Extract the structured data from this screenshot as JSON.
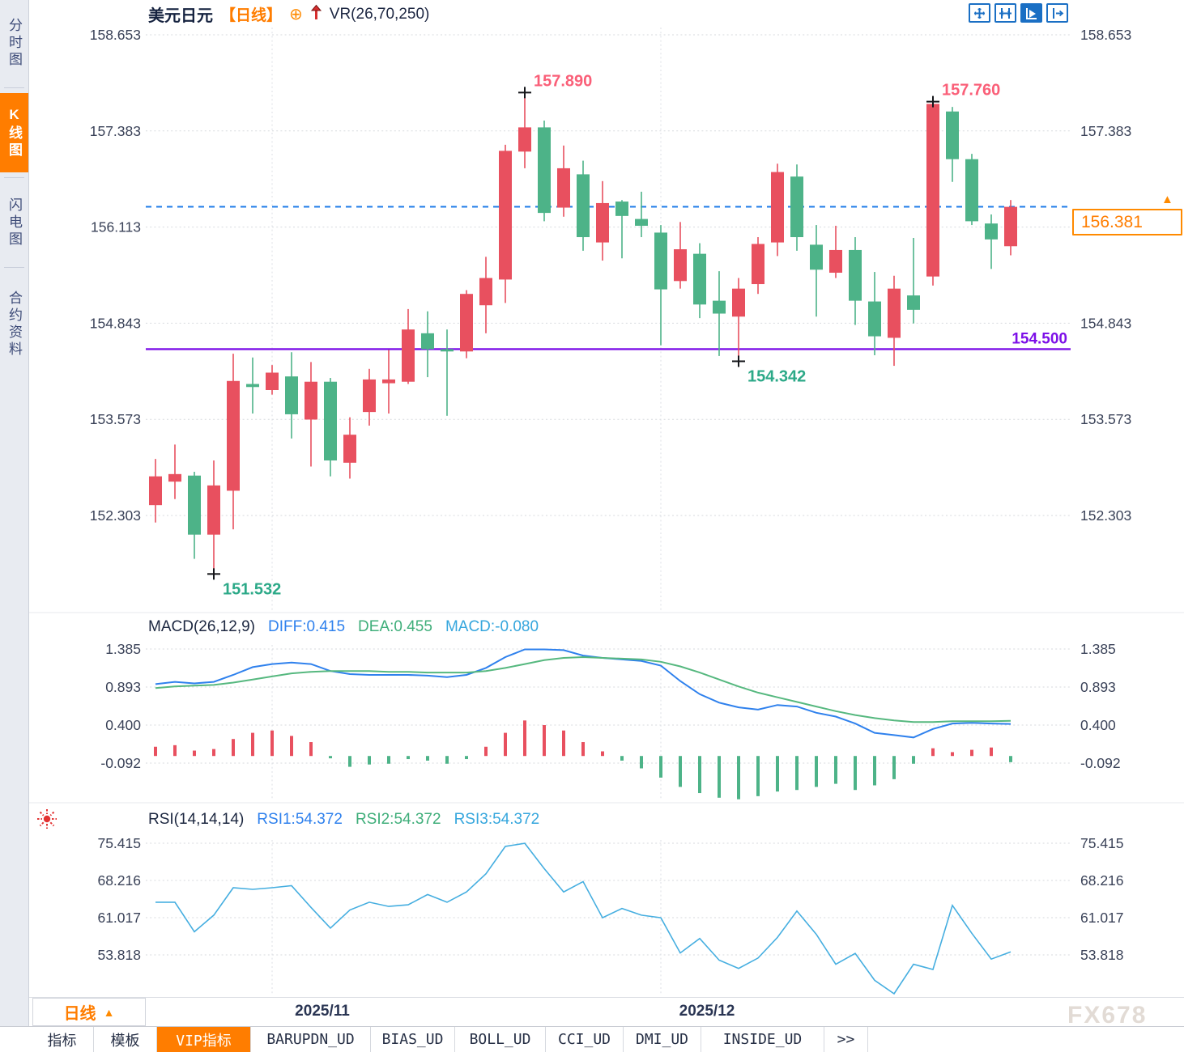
{
  "header": {
    "pair": "美元日元",
    "period": "【日线】",
    "indicator": "VR(26,70,250)"
  },
  "icons": {
    "plus_circle": "⊕",
    "triangle_up": "▲"
  },
  "sidebar": {
    "items": [
      {
        "label": "分时图",
        "active": false
      },
      {
        "label": "K线图",
        "active": true
      },
      {
        "label": "闪电图",
        "active": false
      },
      {
        "label": "合约资料",
        "active": false
      }
    ]
  },
  "price_tag": {
    "value": "156.381"
  },
  "period_button": {
    "label": "日线"
  },
  "x_axis": {
    "labels": [
      {
        "text": "2025/11"
      },
      {
        "text": "2025/12"
      }
    ]
  },
  "macd_header": {
    "name": "MACD(26,12,9)",
    "diff": "DIFF:0.415",
    "dea": "DEA:0.455",
    "macd": "MACD:-0.080"
  },
  "rsi_header": {
    "name": "RSI(14,14,14)",
    "rsi1": "RSI1:54.372",
    "rsi2": "RSI2:54.372",
    "rsi3": "RSI3:54.372"
  },
  "tabs": [
    {
      "label": "指标",
      "active": false
    },
    {
      "label": "模板",
      "active": false
    },
    {
      "label": "VIP指标",
      "active": true
    },
    {
      "label": "BARUPDN_UD",
      "active": false
    },
    {
      "label": "BIAS_UD",
      "active": false
    },
    {
      "label": "BOLL_UD",
      "active": false
    },
    {
      "label": "CCI_UD",
      "active": false
    },
    {
      "label": "DMI_UD",
      "active": false
    },
    {
      "label": "INSIDE_UD",
      "active": false
    },
    {
      "label": ">>",
      "active": false
    }
  ],
  "watermark": "FX678",
  "colors": {
    "up": "#e8505f",
    "down": "#4db388",
    "diff_line": "#2f81ed",
    "dea_line": "#56b87f",
    "rsi_line": "#45aee0",
    "accent_orange": "#ff7d00",
    "support_purple": "#7d10e8",
    "dashed_blue": "#1f7ce8",
    "annotation_pink": "#fa5f78",
    "annotation_teal": "#2ca988"
  },
  "chart_data": {
    "type": "candlestick",
    "symbol": "美元日元",
    "period": "日线",
    "x_axis_labels": [
      "2025/11",
      "2025/12"
    ],
    "price_axis_ticks": [
      158.653,
      157.383,
      156.113,
      154.843,
      153.573,
      152.303
    ],
    "hlines": [
      {
        "price": 154.5,
        "label": "154.500",
        "style": "solid",
        "color_key": "support_purple"
      },
      {
        "price": 156.381,
        "style": "dashed",
        "color_key": "dashed_blue"
      }
    ],
    "annotations": [
      {
        "index": 19,
        "side": "high",
        "text": "157.890",
        "color_key": "annotation_pink"
      },
      {
        "index": 40,
        "side": "high",
        "text": "157.760",
        "color_key": "annotation_pink"
      },
      {
        "index": 3,
        "side": "low",
        "text": "151.532",
        "color_key": "annotation_teal"
      },
      {
        "index": 30,
        "side": "low",
        "text": "154.342",
        "color_key": "annotation_teal"
      }
    ],
    "candles": [
      [
        152.44,
        153.05,
        152.21,
        152.82
      ],
      [
        152.75,
        153.24,
        152.52,
        152.85
      ],
      [
        152.83,
        152.88,
        151.73,
        152.05
      ],
      [
        152.05,
        153.03,
        151.53,
        152.7
      ],
      [
        152.63,
        154.44,
        152.12,
        154.08
      ],
      [
        154.04,
        154.39,
        153.65,
        154.0
      ],
      [
        153.96,
        154.29,
        153.9,
        154.19
      ],
      [
        154.14,
        154.46,
        153.32,
        153.64
      ],
      [
        153.57,
        154.33,
        152.95,
        154.07
      ],
      [
        154.07,
        154.12,
        152.82,
        153.03
      ],
      [
        153.0,
        153.6,
        152.79,
        153.37
      ],
      [
        153.67,
        154.24,
        153.49,
        154.1
      ],
      [
        154.05,
        154.49,
        153.65,
        154.1
      ],
      [
        154.07,
        155.03,
        154.04,
        154.76
      ],
      [
        154.71,
        155.0,
        154.13,
        154.5
      ],
      [
        154.5,
        154.76,
        153.62,
        154.47
      ],
      [
        154.47,
        155.28,
        154.38,
        155.23
      ],
      [
        155.08,
        155.72,
        154.71,
        155.44
      ],
      [
        155.42,
        157.2,
        155.11,
        157.12
      ],
      [
        157.11,
        157.89,
        156.89,
        157.43
      ],
      [
        157.43,
        157.52,
        156.19,
        156.3
      ],
      [
        156.37,
        157.19,
        156.25,
        156.89
      ],
      [
        156.81,
        156.99,
        155.8,
        155.98
      ],
      [
        155.91,
        156.72,
        155.67,
        156.43
      ],
      [
        156.45,
        156.47,
        155.7,
        156.26
      ],
      [
        156.22,
        156.58,
        155.98,
        156.13
      ],
      [
        156.04,
        156.14,
        154.55,
        155.29
      ],
      [
        155.4,
        156.18,
        155.3,
        155.82
      ],
      [
        155.76,
        155.9,
        154.91,
        155.09
      ],
      [
        155.14,
        155.53,
        154.41,
        154.97
      ],
      [
        154.93,
        155.44,
        154.34,
        155.3
      ],
      [
        155.36,
        155.98,
        155.23,
        155.89
      ],
      [
        155.91,
        156.95,
        155.73,
        156.84
      ],
      [
        156.78,
        156.94,
        155.8,
        155.98
      ],
      [
        155.88,
        156.14,
        154.93,
        155.55
      ],
      [
        155.51,
        156.13,
        155.44,
        155.81
      ],
      [
        155.81,
        155.98,
        154.82,
        155.14
      ],
      [
        155.13,
        155.52,
        154.42,
        154.67
      ],
      [
        154.65,
        155.47,
        154.28,
        155.3
      ],
      [
        155.21,
        155.97,
        154.84,
        155.02
      ],
      [
        155.46,
        157.77,
        155.34,
        157.74
      ],
      [
        157.64,
        157.7,
        156.71,
        157.01
      ],
      [
        157.01,
        157.08,
        156.14,
        156.19
      ],
      [
        156.16,
        156.28,
        155.56,
        155.95
      ],
      [
        155.86,
        156.47,
        155.74,
        156.38
      ]
    ],
    "indicators": {
      "macd": {
        "axis_ticks": [
          1.385,
          0.893,
          0.4,
          -0.092
        ],
        "diff": [
          0.93,
          0.96,
          0.94,
          0.96,
          1.05,
          1.15,
          1.19,
          1.21,
          1.19,
          1.1,
          1.06,
          1.05,
          1.05,
          1.05,
          1.04,
          1.02,
          1.05,
          1.14,
          1.28,
          1.38,
          1.38,
          1.37,
          1.3,
          1.27,
          1.25,
          1.23,
          1.17,
          0.97,
          0.8,
          0.69,
          0.63,
          0.6,
          0.66,
          0.64,
          0.56,
          0.51,
          0.42,
          0.3,
          0.27,
          0.24,
          0.35,
          0.42,
          0.43,
          0.42,
          0.415
        ],
        "dea": [
          0.88,
          0.9,
          0.91,
          0.92,
          0.95,
          0.99,
          1.03,
          1.07,
          1.09,
          1.1,
          1.1,
          1.1,
          1.09,
          1.09,
          1.08,
          1.08,
          1.08,
          1.1,
          1.14,
          1.19,
          1.24,
          1.27,
          1.28,
          1.27,
          1.26,
          1.25,
          1.22,
          1.16,
          1.08,
          0.99,
          0.9,
          0.82,
          0.76,
          0.7,
          0.64,
          0.58,
          0.53,
          0.49,
          0.46,
          0.44,
          0.44,
          0.45,
          0.45,
          0.45,
          0.455
        ],
        "hist": [
          0.12,
          0.14,
          0.07,
          0.09,
          0.22,
          0.3,
          0.33,
          0.26,
          0.18,
          -0.03,
          -0.14,
          -0.11,
          -0.1,
          -0.04,
          -0.06,
          -0.1,
          -0.04,
          0.12,
          0.3,
          0.46,
          0.4,
          0.33,
          0.18,
          0.06,
          -0.06,
          -0.16,
          -0.28,
          -0.4,
          -0.48,
          -0.54,
          -0.56,
          -0.52,
          -0.46,
          -0.44,
          -0.4,
          -0.36,
          -0.44,
          -0.38,
          -0.3,
          -0.1,
          0.1,
          0.05,
          0.08,
          0.11,
          -0.08
        ]
      },
      "rsi": {
        "axis_ticks": [
          75.415,
          68.216,
          61.017,
          53.818
        ],
        "values": [
          64.0,
          64.0,
          58.3,
          61.5,
          66.8,
          66.5,
          66.8,
          67.2,
          63.0,
          59.0,
          62.5,
          64.0,
          63.2,
          63.5,
          65.5,
          64.0,
          66.0,
          69.5,
          74.8,
          75.4,
          70.5,
          66.0,
          68.0,
          61.0,
          62.8,
          61.5,
          61.0,
          54.2,
          57.0,
          52.8,
          51.2,
          53.2,
          57.2,
          62.3,
          57.8,
          52.0,
          54.1,
          48.9,
          46.3,
          52.0,
          51.0,
          63.4,
          58.0,
          53.0,
          54.4
        ]
      }
    }
  }
}
